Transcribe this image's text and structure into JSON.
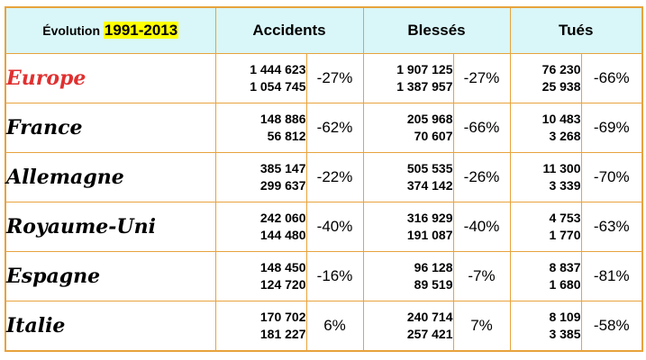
{
  "header": {
    "label": "Évolution",
    "period": "1991-2013",
    "columns": [
      "Accidents",
      "Blessés",
      "Tués"
    ]
  },
  "rows": [
    {
      "country": "Europe",
      "accidents": {
        "v1991": "1 444 623",
        "v2013": "1 054 745",
        "pct": "-27%"
      },
      "blesses": {
        "v1991": "1 907 125",
        "v2013": "1 387 957",
        "pct": "-27%"
      },
      "tues": {
        "v1991": "76 230",
        "v2013": "25 938",
        "pct": "-66%"
      }
    },
    {
      "country": "France",
      "accidents": {
        "v1991": "148 886",
        "v2013": "56 812",
        "pct": "-62%"
      },
      "blesses": {
        "v1991": "205 968",
        "v2013": "70 607",
        "pct": "-66%"
      },
      "tues": {
        "v1991": "10 483",
        "v2013": "3 268",
        "pct": "-69%"
      }
    },
    {
      "country": "Allemagne",
      "accidents": {
        "v1991": "385 147",
        "v2013": "299 637",
        "pct": "-22%"
      },
      "blesses": {
        "v1991": "505 535",
        "v2013": "374 142",
        "pct": "-26%"
      },
      "tues": {
        "v1991": "11 300",
        "v2013": "3 339",
        "pct": "-70%"
      }
    },
    {
      "country": "Royaume-Uni",
      "accidents": {
        "v1991": "242 060",
        "v2013": "144 480",
        "pct": "-40%"
      },
      "blesses": {
        "v1991": "316 929",
        "v2013": "191 087",
        "pct": "-40%"
      },
      "tues": {
        "v1991": "4 753",
        "v2013": "1 770",
        "pct": "-63%"
      }
    },
    {
      "country": "Espagne",
      "accidents": {
        "v1991": "148 450",
        "v2013": "124 720",
        "pct": "-16%"
      },
      "blesses": {
        "v1991": "96 128",
        "v2013": "89 519",
        "pct": "-7%"
      },
      "tues": {
        "v1991": "8 837",
        "v2013": "1 680",
        "pct": "-81%"
      }
    },
    {
      "country": "Italie",
      "accidents": {
        "v1991": "170 702",
        "v2013": "181 227",
        "pct": "6%"
      },
      "blesses": {
        "v1991": "240 714",
        "v2013": "257 421",
        "pct": "7%"
      },
      "tues": {
        "v1991": "8 109",
        "v2013": "3 385",
        "pct": "-58%"
      }
    }
  ]
}
